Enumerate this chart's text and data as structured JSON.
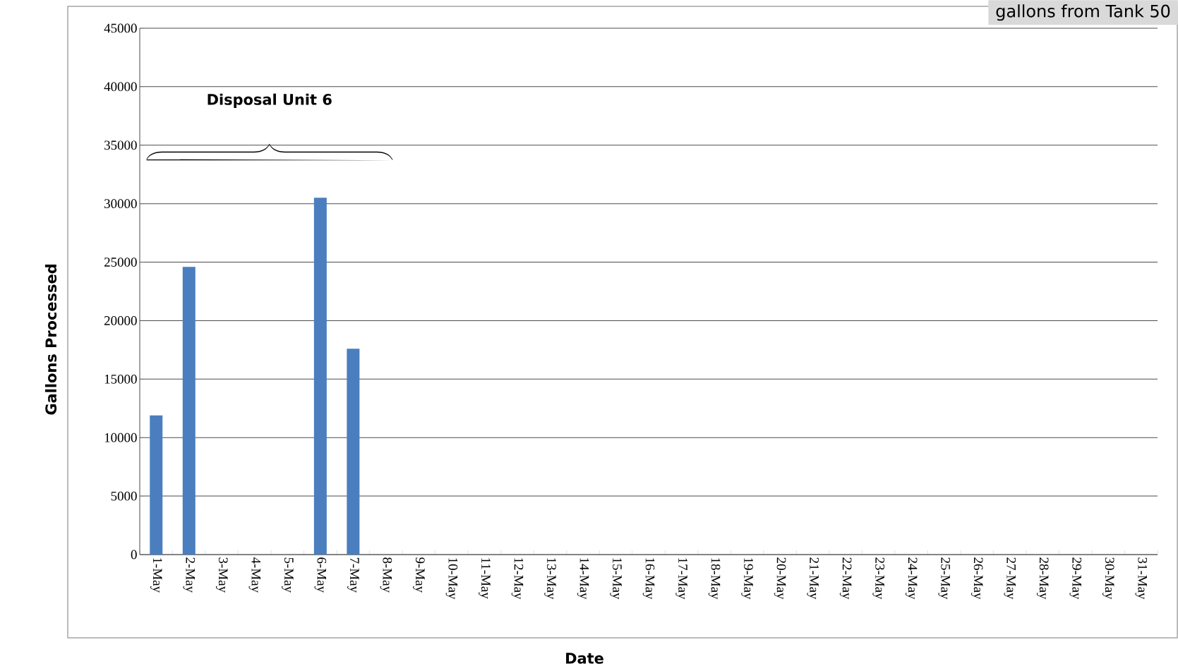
{
  "chart_data": {
    "type": "bar",
    "xlabel": "Date",
    "ylabel": "Gallons Processed",
    "categories": [
      "1-May",
      "2-May",
      "3-May",
      "4-May",
      "5-May",
      "6-May",
      "7-May",
      "8-May",
      "9-May",
      "10-May",
      "11-May",
      "12-May",
      "13-May",
      "14-May",
      "15-May",
      "16-May",
      "17-May",
      "18-May",
      "19-May",
      "20-May",
      "21-May",
      "22-May",
      "23-May",
      "24-May",
      "25-May",
      "26-May",
      "27-May",
      "28-May",
      "29-May",
      "30-May",
      "31-May"
    ],
    "values": [
      11900,
      24600,
      null,
      null,
      null,
      30500,
      17600,
      null,
      null,
      null,
      null,
      null,
      null,
      null,
      null,
      null,
      null,
      null,
      null,
      null,
      null,
      null,
      null,
      null,
      null,
      null,
      null,
      null,
      null,
      null,
      null
    ],
    "color": "#4a7ebf",
    "ylim": [
      0,
      45000
    ],
    "yticks": [
      0,
      5000,
      10000,
      15000,
      20000,
      25000,
      30000,
      35000,
      40000,
      45000
    ],
    "grid": "y",
    "annotations": [
      "Disposal Unit 6",
      "gallons from Tank 50"
    ]
  }
}
